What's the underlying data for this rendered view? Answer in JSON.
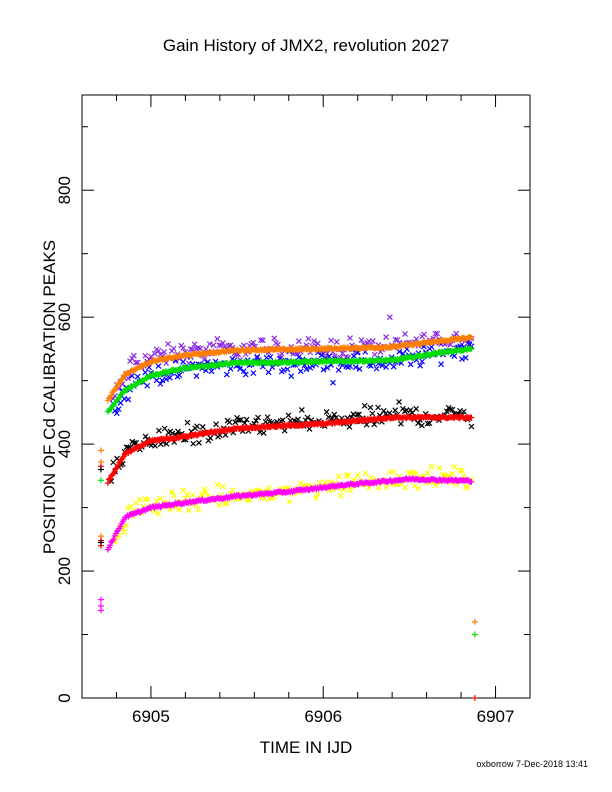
{
  "chart_data": {
    "type": "scatter",
    "title": "Gain History of JMX2, revolution 2027",
    "xlabel": "TIME IN IJD",
    "ylabel": "POSITION OF Cd CALIBRATION PEAKS",
    "xlim": [
      6904.6,
      6907.2
    ],
    "ylim": [
      0,
      950
    ],
    "x_ticks": [
      6905,
      6906,
      6907
    ],
    "y_ticks": [
      0,
      200,
      400,
      600,
      800
    ],
    "x_tick_labels": [
      "6905",
      "6906",
      "6907"
    ],
    "y_tick_labels": [
      "0",
      "200",
      "400",
      "600",
      "800"
    ],
    "grid": false,
    "series": [
      {
        "color": "#8a2be2",
        "marker": "x",
        "kind": "noisy",
        "anchors": [
          [
            6904.78,
            470
          ],
          [
            6904.9,
            530
          ],
          [
            6905.2,
            545
          ],
          [
            6905.6,
            550
          ],
          [
            6906.0,
            550
          ],
          [
            6906.4,
            555
          ],
          [
            6906.7,
            565
          ],
          [
            6906.86,
            565
          ]
        ]
      },
      {
        "color": "#0000ff",
        "marker": "x",
        "kind": "noisy",
        "anchors": [
          [
            6904.78,
            455
          ],
          [
            6904.9,
            500
          ],
          [
            6905.2,
            520
          ],
          [
            6905.6,
            525
          ],
          [
            6906.0,
            530
          ],
          [
            6906.4,
            530
          ],
          [
            6906.7,
            545
          ],
          [
            6906.86,
            555
          ]
        ]
      },
      {
        "color": "#ff7f00",
        "marker": "+",
        "kind": "smooth",
        "anchors": [
          [
            6904.75,
            470
          ],
          [
            6904.85,
            510
          ],
          [
            6905.0,
            530
          ],
          [
            6905.2,
            540
          ],
          [
            6905.5,
            548
          ],
          [
            6906.0,
            550
          ],
          [
            6906.4,
            553
          ],
          [
            6906.7,
            563
          ],
          [
            6906.86,
            568
          ]
        ]
      },
      {
        "color": "#00dd00",
        "marker": "+",
        "kind": "smooth",
        "anchors": [
          [
            6904.75,
            450
          ],
          [
            6904.85,
            485
          ],
          [
            6905.0,
            508
          ],
          [
            6905.2,
            520
          ],
          [
            6905.5,
            528
          ],
          [
            6906.0,
            530
          ],
          [
            6906.4,
            532
          ],
          [
            6906.7,
            545
          ],
          [
            6906.86,
            550
          ]
        ]
      },
      {
        "color": "#000000",
        "marker": "x",
        "kind": "noisy",
        "anchors": [
          [
            6904.77,
            345
          ],
          [
            6904.87,
            395
          ],
          [
            6905.0,
            408
          ],
          [
            6905.3,
            415
          ],
          [
            6905.6,
            430
          ],
          [
            6906.0,
            435
          ],
          [
            6906.4,
            445
          ],
          [
            6906.86,
            445
          ]
        ]
      },
      {
        "color": "#ff0000",
        "marker": "+",
        "kind": "smooth",
        "anchors": [
          [
            6904.75,
            340
          ],
          [
            6904.85,
            385
          ],
          [
            6905.0,
            405
          ],
          [
            6905.2,
            412
          ],
          [
            6905.5,
            425
          ],
          [
            6906.0,
            432
          ],
          [
            6906.4,
            442
          ],
          [
            6906.86,
            442
          ]
        ]
      },
      {
        "color": "#ffff00",
        "marker": "x",
        "kind": "noisy",
        "anchors": [
          [
            6904.78,
            240
          ],
          [
            6904.9,
            300
          ],
          [
            6905.2,
            310
          ],
          [
            6905.5,
            318
          ],
          [
            6905.8,
            325
          ],
          [
            6906.1,
            338
          ],
          [
            6906.5,
            348
          ],
          [
            6906.86,
            345
          ]
        ]
      },
      {
        "color": "#ff00ff",
        "marker": "+",
        "kind": "smooth",
        "anchors": [
          [
            6904.75,
            235
          ],
          [
            6904.85,
            285
          ],
          [
            6905.0,
            300
          ],
          [
            6905.2,
            308
          ],
          [
            6905.5,
            318
          ],
          [
            6905.8,
            325
          ],
          [
            6906.1,
            335
          ],
          [
            6906.5,
            345
          ],
          [
            6906.86,
            342
          ]
        ]
      }
    ],
    "outliers": [
      {
        "color": "#ff7f00",
        "points": [
          [
            6904.71,
            390
          ],
          [
            6904.71,
            372
          ],
          [
            6904.71,
            255
          ],
          [
            6906.88,
            120
          ]
        ]
      },
      {
        "color": "#00dd00",
        "points": [
          [
            6904.71,
            343
          ],
          [
            6906.88,
            100
          ]
        ]
      },
      {
        "color": "#ff0000",
        "points": [
          [
            6904.71,
            365
          ],
          [
            6904.71,
            248
          ],
          [
            6904.71,
            240
          ],
          [
            6906.88,
            0
          ]
        ]
      },
      {
        "color": "#ff00ff",
        "points": [
          [
            6904.71,
            155
          ],
          [
            6904.71,
            145
          ],
          [
            6904.71,
            138
          ]
        ]
      },
      {
        "color": "#000000",
        "points": [
          [
            6904.71,
            360
          ],
          [
            6904.71,
            245
          ]
        ]
      }
    ]
  },
  "footer": "oxborrow  7-Dec-2018 13:41"
}
